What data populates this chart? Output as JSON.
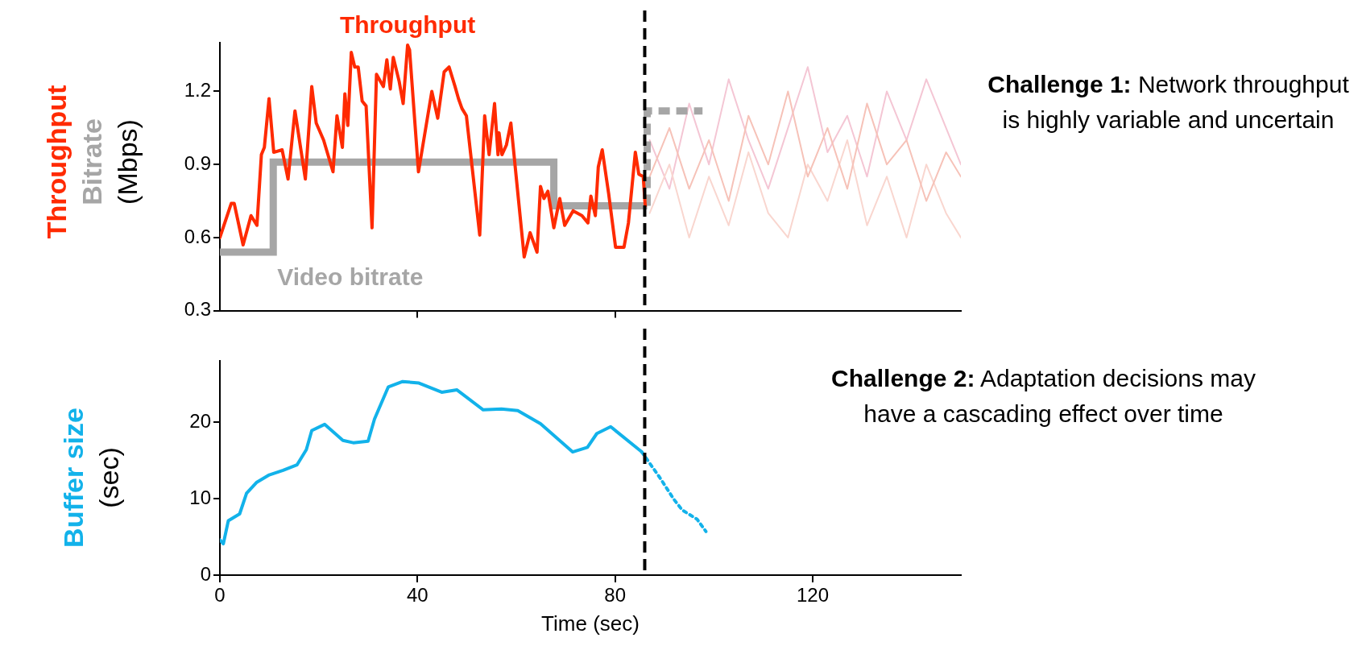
{
  "chart_data": [
    {
      "type": "line",
      "ylabel": "Throughput\nBitrate\n(Mbps)",
      "xlim": [
        0,
        150
      ],
      "xticks": [
        {
          "value": 40,
          "label": null
        },
        {
          "value": 80,
          "label": null
        }
      ],
      "ylim": [
        0.3,
        1.4
      ],
      "yticks": [
        0.3,
        0.6,
        0.9,
        1.2
      ],
      "tick_labels": "y",
      "series": [
        {
          "name": "Throughput",
          "color": "#ff2a00",
          "line_style": "solid",
          "x": [
            0,
            2.3,
            2.9,
            4.7,
            6.3,
            7.5,
            8.4,
            9.0,
            9.95,
            10.9,
            12.6,
            13.8,
            15.2,
            17.3,
            18.6,
            19.5,
            21.0,
            22.9,
            23.7,
            24.8,
            25.3,
            25.9,
            26.6,
            27.3,
            28.0,
            28.8,
            29.6,
            30.8,
            31.7,
            33.1,
            33.8,
            34.5,
            35.1,
            36.3,
            37.1,
            38.0,
            38.4,
            40.2,
            42.9,
            44.1,
            45.4,
            46.4,
            47.6,
            48.3,
            49.0,
            49.9,
            52.6,
            53.6,
            54.5,
            55.6,
            56.3,
            56.5,
            57.1,
            58.0,
            58.9,
            61.6,
            62.8,
            64.2,
            64.9,
            65.6,
            66.4,
            67.6,
            68.8,
            69.8,
            71.5,
            73.3,
            74.5,
            75.1,
            76.0,
            76.6,
            77.4,
            78.7,
            80.1,
            81.8,
            82.7,
            84.1,
            84.8,
            85.7,
            86.1
          ],
          "values": [
            0.6,
            0.74,
            0.74,
            0.57,
            0.69,
            0.65,
            0.94,
            0.97,
            1.17,
            0.95,
            0.96,
            0.84,
            1.12,
            0.84,
            1.22,
            1.07,
            1.0,
            0.87,
            1.1,
            0.97,
            1.19,
            1.06,
            1.36,
            1.3,
            1.3,
            1.16,
            1.14,
            0.64,
            1.27,
            1.22,
            1.33,
            1.21,
            1.34,
            1.24,
            1.15,
            1.39,
            1.37,
            0.87,
            1.2,
            1.09,
            1.28,
            1.3,
            1.22,
            1.17,
            1.13,
            1.1,
            0.61,
            1.1,
            0.94,
            1.15,
            0.94,
            1.03,
            0.94,
            0.98,
            1.07,
            0.52,
            0.62,
            0.54,
            0.81,
            0.76,
            0.79,
            0.64,
            0.76,
            0.65,
            0.71,
            0.69,
            0.66,
            0.77,
            0.69,
            0.89,
            0.96,
            0.78,
            0.56,
            0.56,
            0.66,
            0.95,
            0.86,
            0.85,
            0.73
          ]
        },
        {
          "name": "Video bitrate",
          "type": "step",
          "color": "#a6a6a6",
          "x": [
            0,
            10.8,
            67.6,
            86.5
          ],
          "values": [
            0.54,
            0.91,
            0.73,
            0.73
          ]
        },
        {
          "type": "step",
          "color": "#a6a6a6",
          "line_style": "dashed",
          "x": [
            86.5,
            86.5,
            97.7
          ],
          "values": [
            0.73,
            1.12,
            1.12
          ]
        },
        {
          "color": "#f6c2b8",
          "x": [
            87,
            91,
            95,
            99,
            103,
            107,
            111,
            115,
            119,
            123,
            127,
            131,
            135,
            139,
            143,
            147,
            150
          ],
          "values": [
            0.85,
            1.05,
            0.8,
            1.0,
            0.75,
            1.1,
            0.9,
            1.2,
            0.85,
            1.05,
            0.8,
            1.15,
            0.9,
            1.0,
            0.75,
            0.95,
            0.85
          ]
        },
        {
          "color": "#f9d6cf",
          "x": [
            87,
            91,
            95,
            99,
            103,
            107,
            111,
            115,
            119,
            123,
            127,
            131,
            135,
            139,
            143,
            147,
            150
          ],
          "values": [
            0.7,
            0.9,
            0.6,
            0.85,
            0.65,
            0.95,
            0.7,
            0.6,
            0.9,
            0.75,
            1.0,
            0.65,
            0.85,
            0.6,
            0.9,
            0.7,
            0.6
          ]
        },
        {
          "color": "#f4c6d4",
          "x": [
            87,
            91,
            95,
            99,
            103,
            107,
            111,
            115,
            119,
            123,
            127,
            131,
            135,
            139,
            143,
            147,
            150
          ],
          "values": [
            1.0,
            0.8,
            1.15,
            0.9,
            1.25,
            1.0,
            0.8,
            1.05,
            1.3,
            0.95,
            1.1,
            0.85,
            1.2,
            1.0,
            1.25,
            1.05,
            0.9
          ]
        }
      ],
      "ref_lines": [
        {
          "axis": "x",
          "value": 86,
          "color": "#000000",
          "line_style": "dashed"
        }
      ],
      "annotations": [
        "Challenge 1: Network throughput is highly variable and uncertain"
      ]
    },
    {
      "type": "line",
      "ylabel": "Buffer size\n(sec)",
      "xlabel": "Time (sec)",
      "xlim": [
        0,
        150
      ],
      "xticks": [
        0,
        40,
        80,
        120
      ],
      "ylim": [
        0,
        28
      ],
      "yticks": [
        0,
        10,
        20
      ],
      "series": [
        {
          "color": "#12b2ea",
          "line_style": "solid",
          "x": [
            0,
            0.7,
            1.7,
            4.0,
            5.4,
            7.4,
            10.0,
            12.8,
            15.6,
            17.5,
            18.6,
            21.2,
            24.9,
            27.0,
            30.0,
            31.3,
            34.1,
            37.0,
            40.3,
            44.9,
            48.0,
            53.3,
            57.0,
            60.3,
            64.9,
            71.4,
            74.4,
            76.3,
            79.1,
            85.4
          ],
          "values": [
            4.6,
            4.1,
            7.1,
            8.0,
            10.7,
            12.1,
            13.1,
            13.7,
            14.4,
            16.4,
            18.9,
            19.7,
            17.6,
            17.3,
            17.5,
            20.4,
            24.6,
            25.3,
            25.1,
            23.9,
            24.2,
            21.6,
            21.7,
            21.5,
            19.8,
            16.1,
            16.7,
            18.5,
            19.4,
            16.1
          ]
        },
        {
          "color": "#12b2ea",
          "line_style": "dotted",
          "x": [
            85.4,
            89.1,
            91.9,
            93.6,
            96.6,
            98.4
          ],
          "values": [
            16.1,
            12.7,
            9.9,
            8.5,
            7.3,
            5.7
          ]
        }
      ],
      "ref_lines": [
        {
          "axis": "x",
          "value": 86,
          "color": "#000000",
          "line_style": "dashed"
        }
      ],
      "annotations": [
        "Challenge 2: Adaptation decisions may have a cascading effect over time"
      ]
    }
  ]
}
